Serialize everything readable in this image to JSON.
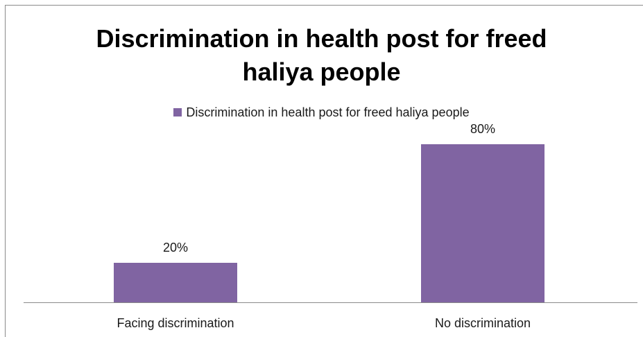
{
  "chart_data": {
    "type": "bar",
    "title": [
      "Discrimination in health post for freed",
      "haliya people"
    ],
    "categories": [
      "Facing discrimination",
      "No discrimination"
    ],
    "series": [
      {
        "name": "Discrimination in health post for freed haliya people",
        "values": [
          20,
          80
        ],
        "labels": [
          "20%",
          "80%"
        ],
        "color": "#8064a2"
      }
    ],
    "ylim": [
      0,
      100
    ],
    "legend_position": "top",
    "grid": false
  }
}
